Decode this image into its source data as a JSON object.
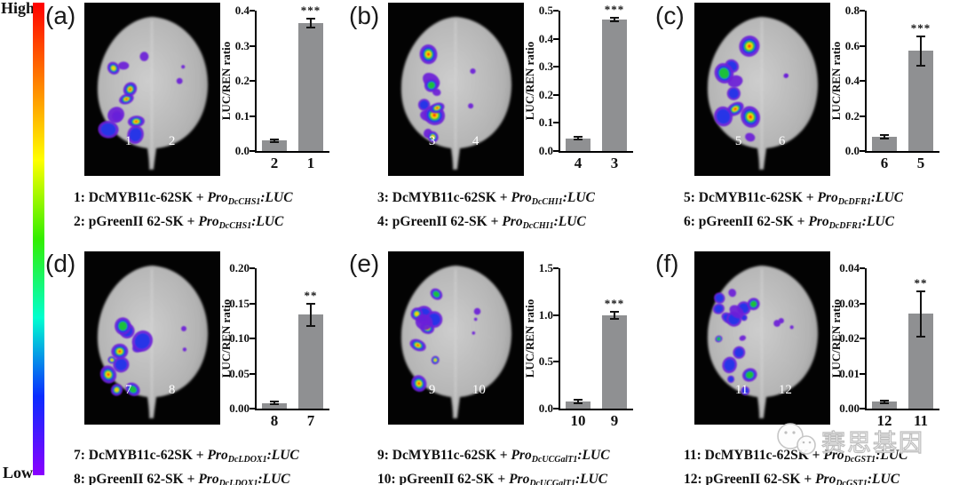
{
  "colorbar": {
    "high_label": "High",
    "low_label": "Low",
    "stops": [
      "#ff0000",
      "#ff7f00",
      "#ffff00",
      "#33ee00",
      "#00ffcf",
      "#0a2cff",
      "#8a00ff"
    ]
  },
  "bar_color": "#8f9092",
  "watermark": {
    "icon": "wechat-icon",
    "text": "赛思基因"
  },
  "panels": [
    {
      "letter": "(a)",
      "leaf": {
        "left_num": "1",
        "right_num": "2"
      },
      "captions": [
        {
          "prefix": "1: DcMYB11c-62SK + ",
          "pro": "Pro",
          "sub": "DcCHS1",
          "luc": ":LUC"
        },
        {
          "prefix": "2: pGreenII 62-SK + ",
          "pro": "Pro",
          "sub": "DcCHS1",
          "luc": ":LUC"
        }
      ]
    },
    {
      "letter": "(b)",
      "leaf": {
        "left_num": "3",
        "right_num": "4"
      },
      "captions": [
        {
          "prefix": "3: DcMYB11c-62SK + ",
          "pro": "Pro",
          "sub": "DcCHI1",
          "luc": ":LUC"
        },
        {
          "prefix": "4: pGreenII 62-SK + ",
          "pro": "Pro",
          "sub": "DcCHI1",
          "luc": ":LUC"
        }
      ]
    },
    {
      "letter": "(c)",
      "leaf": {
        "left_num": "5",
        "right_num": "6"
      },
      "captions": [
        {
          "prefix": "5: DcMYB11c-62SK + ",
          "pro": "Pro",
          "sub": "DcDFR1",
          "luc": ":LUC"
        },
        {
          "prefix": "6: pGreenII 62-SK + ",
          "pro": "Pro",
          "sub": "DcDFR1",
          "luc": ":LUC"
        }
      ]
    },
    {
      "letter": "(d)",
      "leaf": {
        "left_num": "7",
        "right_num": "8"
      },
      "captions": [
        {
          "prefix": "7: DcMYB11c-62SK + ",
          "pro": "Pro",
          "sub": "DcLDOX1",
          "luc": ":LUC"
        },
        {
          "prefix": "8: pGreenII 62-SK + ",
          "pro": "Pro",
          "sub": "DcLDOX1",
          "luc": ":LUC"
        }
      ]
    },
    {
      "letter": "(e)",
      "leaf": {
        "left_num": "9",
        "right_num": "10"
      },
      "captions": [
        {
          "prefix": "9: DcMYB11c-62SK + ",
          "pro": "Pro",
          "sub": "DcUCGalT1",
          "luc": ":LUC"
        },
        {
          "prefix": "10: pGreenII 62-SK + ",
          "pro": "Pro",
          "sub": "DcUCGalT1",
          "luc": ":LUC"
        }
      ]
    },
    {
      "letter": "(f)",
      "leaf": {
        "left_num": "11",
        "right_num": "12"
      },
      "captions": [
        {
          "prefix": "11: DcMYB11c-62SK + ",
          "pro": "Pro",
          "sub": "DcGST1",
          "luc": ":LUC"
        },
        {
          "prefix": "12: pGreenII 62-SK + ",
          "pro": "Pro",
          "sub": "DcGST1",
          "luc": ":LUC"
        }
      ]
    }
  ],
  "chart_data": [
    {
      "type": "bar",
      "panel": "a",
      "ylabel": "LUC/REN ratio",
      "ylim": [
        0,
        0.4
      ],
      "yticks": [
        "0.0",
        "0.1",
        "0.2",
        "0.3",
        "0.4"
      ],
      "categories": [
        "2",
        "1"
      ],
      "values": [
        0.03,
        0.365
      ],
      "errors": [
        0.004,
        0.012
      ],
      "significance": [
        "",
        "***"
      ]
    },
    {
      "type": "bar",
      "panel": "b",
      "ylabel": "LUC/REN ratio",
      "ylim": [
        0,
        0.5
      ],
      "yticks": [
        "0.0",
        "0.1",
        "0.2",
        "0.3",
        "0.4",
        "0.5"
      ],
      "categories": [
        "4",
        "3"
      ],
      "values": [
        0.046,
        0.468
      ],
      "errors": [
        0.004,
        0.006
      ],
      "significance": [
        "",
        "***"
      ]
    },
    {
      "type": "bar",
      "panel": "c",
      "ylabel": "LUC/REN ratio",
      "ylim": [
        0,
        0.8
      ],
      "yticks": [
        "0.0",
        "0.2",
        "0.4",
        "0.6",
        "0.8"
      ],
      "categories": [
        "6",
        "5"
      ],
      "values": [
        0.08,
        0.57
      ],
      "errors": [
        0.01,
        0.085
      ],
      "significance": [
        "",
        "***"
      ]
    },
    {
      "type": "bar",
      "panel": "d",
      "ylabel": "LUC/REN ratio",
      "ylim": [
        0,
        0.2
      ],
      "yticks": [
        "0.00",
        "0.05",
        "0.10",
        "0.15",
        "0.20"
      ],
      "categories": [
        "8",
        "7"
      ],
      "values": [
        0.008,
        0.134
      ],
      "errors": [
        0.002,
        0.016
      ],
      "significance": [
        "",
        "**"
      ]
    },
    {
      "type": "bar",
      "panel": "e",
      "ylabel": "LUC/REN ratio",
      "ylim": [
        0,
        1.5
      ],
      "yticks": [
        "0.0",
        "0.5",
        "1.0",
        "1.5"
      ],
      "categories": [
        "10",
        "9"
      ],
      "values": [
        0.08,
        1.0
      ],
      "errors": [
        0.02,
        0.04
      ],
      "significance": [
        "",
        "***"
      ]
    },
    {
      "type": "bar",
      "panel": "f",
      "ylabel": "LUC/REN ratio",
      "ylim": [
        0,
        0.04
      ],
      "yticks": [
        "0.00",
        "0.01",
        "0.02",
        "0.03",
        "0.04"
      ],
      "categories": [
        "12",
        "11"
      ],
      "values": [
        0.002,
        0.027
      ],
      "errors": [
        0.0004,
        0.0065
      ],
      "significance": [
        "",
        "**"
      ]
    }
  ]
}
